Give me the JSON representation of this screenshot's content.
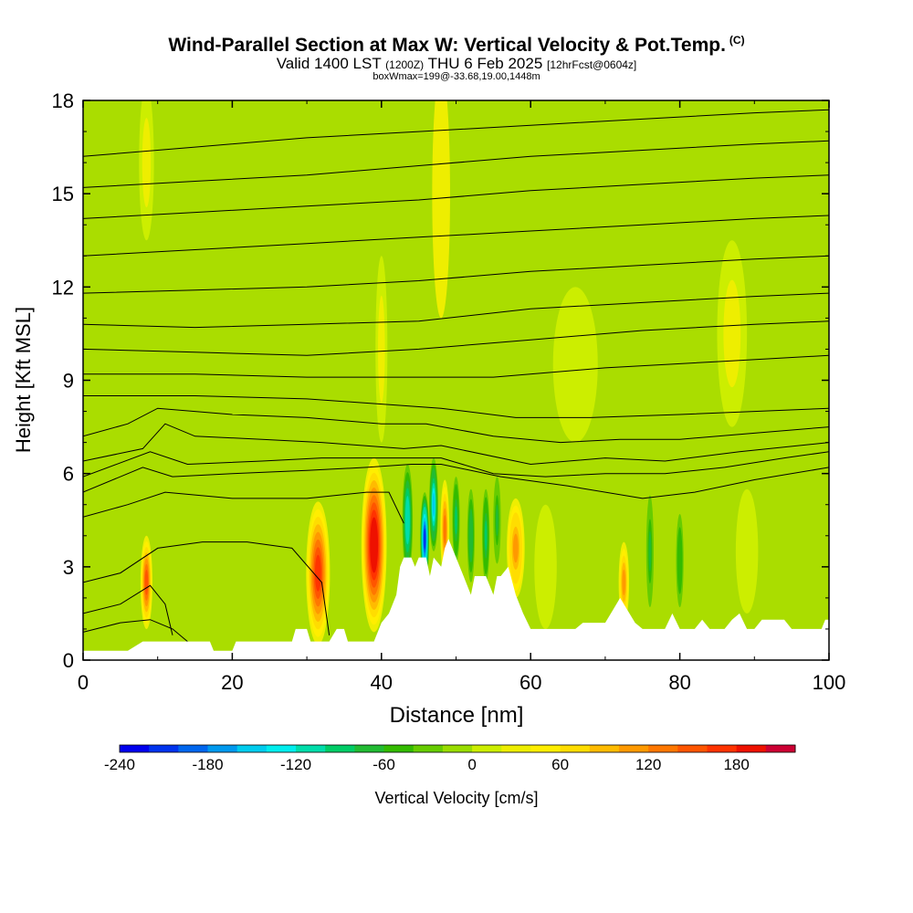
{
  "title": {
    "main": "Wind-Parallel Section at Max W: Vertical Velocity & Pot.Temp.",
    "copyright": "(C)",
    "valid_prefix": "Valid 1400 LST",
    "utc": "(1200Z)",
    "date": "THU 6 Feb 2025",
    "forecast": "[12hrFcst@0604z]",
    "box_info": "boxWmax=199@-33.68,19.00,1448m"
  },
  "colors": {
    "background_field": "#aadd00",
    "terrain": "#ffffff",
    "contour": "#000000"
  },
  "chart_data": {
    "type": "heatmap",
    "xlabel": "Distance [nm]",
    "ylabel": "Height [Kft MSL]",
    "xlim": [
      0,
      100
    ],
    "ylim": [
      0,
      18
    ],
    "xticks": [
      "0",
      "20",
      "40",
      "60",
      "80",
      "100"
    ],
    "yticks": [
      "0",
      "3",
      "6",
      "9",
      "12",
      "15",
      "18"
    ],
    "colorbar": {
      "label": "Vertical Velocity [cm/s]",
      "tick_labels": [
        "-240",
        "-180",
        "-120",
        "-60",
        "0",
        "60",
        "120",
        "180"
      ],
      "tick_values": [
        -240,
        -180,
        -120,
        -60,
        0,
        60,
        120,
        180
      ],
      "min": -240,
      "max": 220,
      "colors": [
        "#0000ee",
        "#0033ee",
        "#0066ee",
        "#0099ee",
        "#00ccee",
        "#00eeee",
        "#00ddaa",
        "#00cc66",
        "#22bb33",
        "#33bb00",
        "#66cc00",
        "#99dd00",
        "#ccee00",
        "#eeee00",
        "#ffee00",
        "#ffdd00",
        "#ffbb00",
        "#ff9900",
        "#ff7700",
        "#ff5500",
        "#ff3300",
        "#ee1100",
        "#cc0033"
      ]
    },
    "terrain_profile": [
      [
        0,
        0.3
      ],
      [
        2,
        0.3
      ],
      [
        4,
        0.3
      ],
      [
        6,
        0.3
      ],
      [
        8,
        0.6
      ],
      [
        10,
        0.6
      ],
      [
        12,
        0.6
      ],
      [
        14,
        0.6
      ],
      [
        17,
        0.6
      ],
      [
        17.5,
        0.3
      ],
      [
        20,
        0.3
      ],
      [
        20.5,
        0.6
      ],
      [
        22,
        0.6
      ],
      [
        24,
        0.6
      ],
      [
        26,
        0.6
      ],
      [
        28,
        0.6
      ],
      [
        28.5,
        1.0
      ],
      [
        30,
        1.0
      ],
      [
        30.5,
        0.6
      ],
      [
        33,
        0.6
      ],
      [
        34,
        1.0
      ],
      [
        35,
        1.0
      ],
      [
        35.5,
        0.6
      ],
      [
        39,
        0.6
      ],
      [
        40,
        1.2
      ],
      [
        41,
        1.5
      ],
      [
        42,
        2.1
      ],
      [
        42.5,
        3.0
      ],
      [
        43,
        3.3
      ],
      [
        44,
        3.3
      ],
      [
        44.5,
        3.0
      ],
      [
        45,
        3.3
      ],
      [
        46,
        3.3
      ],
      [
        46.5,
        2.7
      ],
      [
        47,
        3.3
      ],
      [
        48,
        3.0
      ],
      [
        48.5,
        3.6
      ],
      [
        49,
        3.9
      ],
      [
        50,
        3.3
      ],
      [
        51,
        2.7
      ],
      [
        52,
        2.1
      ],
      [
        52.5,
        2.7
      ],
      [
        54,
        2.7
      ],
      [
        55,
        2.1
      ],
      [
        55.5,
        2.7
      ],
      [
        56,
        2.7
      ],
      [
        57,
        3.0
      ],
      [
        58,
        2.1
      ],
      [
        59,
        1.5
      ],
      [
        60,
        1.0
      ],
      [
        62,
        1.0
      ],
      [
        64,
        1.0
      ],
      [
        66,
        1.0
      ],
      [
        67,
        1.2
      ],
      [
        70,
        1.2
      ],
      [
        71,
        1.6
      ],
      [
        72,
        2.0
      ],
      [
        73,
        1.6
      ],
      [
        74,
        1.2
      ],
      [
        75,
        1.0
      ],
      [
        78,
        1.0
      ],
      [
        79,
        1.5
      ],
      [
        80,
        1.0
      ],
      [
        82,
        1.0
      ],
      [
        83,
        1.3
      ],
      [
        84,
        1.0
      ],
      [
        86,
        1.0
      ],
      [
        87,
        1.3
      ],
      [
        88,
        1.5
      ],
      [
        89,
        1.0
      ],
      [
        90,
        1.0
      ],
      [
        91,
        1.3
      ],
      [
        94,
        1.3
      ],
      [
        95,
        1.0
      ],
      [
        99,
        1.0
      ],
      [
        99.5,
        1.3
      ],
      [
        100,
        1.3
      ]
    ],
    "velocity_features": [
      {
        "x": 8.5,
        "y": 2.5,
        "dx": 0.8,
        "dy": 1.5,
        "w": 140
      },
      {
        "x": 31.5,
        "y": 2.8,
        "dx": 1.6,
        "dy": 2.3,
        "w": 160
      },
      {
        "x": 39.0,
        "y": 3.7,
        "dx": 1.7,
        "dy": 2.8,
        "w": 199
      },
      {
        "x": 43.5,
        "y": 4.5,
        "dx": 0.7,
        "dy": 1.8,
        "w": -120
      },
      {
        "x": 45.8,
        "y": 3.9,
        "dx": 0.6,
        "dy": 1.5,
        "w": -210
      },
      {
        "x": 47.0,
        "y": 5.0,
        "dx": 0.6,
        "dy": 1.5,
        "w": -150
      },
      {
        "x": 48.5,
        "y": 4.2,
        "dx": 0.6,
        "dy": 1.6,
        "w": 120
      },
      {
        "x": 50.0,
        "y": 4.5,
        "dx": 0.5,
        "dy": 1.4,
        "w": -90
      },
      {
        "x": 52.0,
        "y": 4.0,
        "dx": 0.5,
        "dy": 1.5,
        "w": -80
      },
      {
        "x": 54.0,
        "y": 4.0,
        "dx": 0.5,
        "dy": 1.5,
        "w": -90
      },
      {
        "x": 55.5,
        "y": 4.5,
        "dx": 0.5,
        "dy": 1.4,
        "w": -70
      },
      {
        "x": 58.0,
        "y": 3.6,
        "dx": 1.2,
        "dy": 1.6,
        "w": 110
      },
      {
        "x": 72.5,
        "y": 2.5,
        "dx": 0.7,
        "dy": 1.3,
        "w": 100
      },
      {
        "x": 76.0,
        "y": 3.5,
        "dx": 0.5,
        "dy": 1.8,
        "w": -70
      },
      {
        "x": 80.0,
        "y": 3.2,
        "dx": 0.5,
        "dy": 1.5,
        "w": -60
      },
      {
        "x": 48.0,
        "y": 15.0,
        "dx": 1.2,
        "dy": 4.0,
        "w": 35
      },
      {
        "x": 8.5,
        "y": 16.0,
        "dx": 1.0,
        "dy": 2.5,
        "w": 25
      },
      {
        "x": 66.0,
        "y": 9.5,
        "dx": 3.0,
        "dy": 2.5,
        "w": 20
      },
      {
        "x": 87.0,
        "y": 10.5,
        "dx": 2.0,
        "dy": 3.0,
        "w": 22
      },
      {
        "x": 40.0,
        "y": 10.0,
        "dx": 0.8,
        "dy": 3.0,
        "w": 25
      },
      {
        "x": 62.0,
        "y": 3.0,
        "dx": 1.5,
        "dy": 2.0,
        "w": 20
      },
      {
        "x": 89.0,
        "y": 3.5,
        "dx": 1.5,
        "dy": 2.0,
        "w": 18
      }
    ],
    "theta_contours": [
      {
        "pts": [
          [
            0,
            0.9
          ],
          [
            5,
            1.2
          ],
          [
            9,
            1.3
          ],
          [
            12,
            1.0
          ],
          [
            14,
            0.6
          ]
        ]
      },
      {
        "pts": [
          [
            0,
            1.5
          ],
          [
            5,
            1.8
          ],
          [
            9,
            2.4
          ],
          [
            11,
            1.8
          ],
          [
            12,
            0.8
          ]
        ]
      },
      {
        "pts": [
          [
            0,
            2.5
          ],
          [
            5,
            2.8
          ],
          [
            10,
            3.6
          ],
          [
            16,
            3.8
          ],
          [
            22,
            3.8
          ],
          [
            28,
            3.6
          ],
          [
            32,
            2.5
          ],
          [
            33,
            0.8
          ]
        ]
      },
      {
        "pts": [
          [
            0,
            4.6
          ],
          [
            6,
            5.0
          ],
          [
            11,
            5.4
          ],
          [
            20,
            5.2
          ],
          [
            30,
            5.2
          ],
          [
            38,
            5.4
          ],
          [
            41,
            5.4
          ],
          [
            43,
            4.4
          ]
        ]
      },
      {
        "pts": [
          [
            0,
            5.4
          ],
          [
            8,
            6.2
          ],
          [
            12,
            5.9
          ],
          [
            20,
            6.0
          ],
          [
            30,
            6.1
          ],
          [
            38,
            6.2
          ],
          [
            44,
            6.3
          ],
          [
            48,
            6.3
          ],
          [
            56,
            5.9
          ],
          [
            65,
            5.6
          ],
          [
            75,
            5.2
          ],
          [
            82,
            5.4
          ],
          [
            90,
            5.8
          ],
          [
            100,
            6.2
          ]
        ]
      },
      {
        "pts": [
          [
            0,
            5.9
          ],
          [
            9,
            6.7
          ],
          [
            14,
            6.3
          ],
          [
            24,
            6.4
          ],
          [
            32,
            6.5
          ],
          [
            41,
            6.5
          ],
          [
            48,
            6.5
          ],
          [
            55,
            6.0
          ],
          [
            62,
            5.9
          ],
          [
            70,
            6.0
          ],
          [
            78,
            6.0
          ],
          [
            86,
            6.2
          ],
          [
            94,
            6.5
          ],
          [
            100,
            6.7
          ]
        ]
      },
      {
        "pts": [
          [
            0,
            6.4
          ],
          [
            8,
            6.8
          ],
          [
            11,
            7.6
          ],
          [
            15,
            7.2
          ],
          [
            24,
            7.1
          ],
          [
            32,
            7.0
          ],
          [
            43,
            6.8
          ],
          [
            48,
            6.9
          ],
          [
            60,
            6.3
          ],
          [
            70,
            6.5
          ],
          [
            78,
            6.4
          ],
          [
            88,
            6.7
          ],
          [
            100,
            7.0
          ]
        ]
      },
      {
        "pts": [
          [
            0,
            7.2
          ],
          [
            6,
            7.6
          ],
          [
            10,
            8.1
          ],
          [
            20,
            7.9
          ],
          [
            30,
            7.8
          ],
          [
            40,
            7.6
          ],
          [
            46,
            7.6
          ],
          [
            55,
            7.2
          ],
          [
            64,
            7.0
          ],
          [
            72,
            7.1
          ],
          [
            80,
            7.1
          ],
          [
            90,
            7.3
          ],
          [
            100,
            7.5
          ]
        ]
      },
      {
        "pts": [
          [
            0,
            8.5
          ],
          [
            15,
            8.5
          ],
          [
            30,
            8.4
          ],
          [
            42,
            8.2
          ],
          [
            48,
            8.1
          ],
          [
            58,
            7.8
          ],
          [
            68,
            7.8
          ],
          [
            80,
            7.9
          ],
          [
            100,
            8.1
          ]
        ]
      },
      {
        "pts": [
          [
            0,
            9.2
          ],
          [
            15,
            9.2
          ],
          [
            30,
            9.1
          ],
          [
            45,
            9.1
          ],
          [
            55,
            9.1
          ],
          [
            70,
            9.4
          ],
          [
            85,
            9.6
          ],
          [
            100,
            9.8
          ]
        ]
      },
      {
        "pts": [
          [
            0,
            10.0
          ],
          [
            15,
            9.9
          ],
          [
            30,
            9.8
          ],
          [
            45,
            10.0
          ],
          [
            60,
            10.3
          ],
          [
            75,
            10.6
          ],
          [
            90,
            10.8
          ],
          [
            100,
            10.9
          ]
        ]
      },
      {
        "pts": [
          [
            0,
            10.8
          ],
          [
            15,
            10.7
          ],
          [
            30,
            10.8
          ],
          [
            45,
            10.9
          ],
          [
            60,
            11.3
          ],
          [
            75,
            11.5
          ],
          [
            90,
            11.7
          ],
          [
            100,
            11.8
          ]
        ]
      },
      {
        "pts": [
          [
            0,
            11.8
          ],
          [
            15,
            11.9
          ],
          [
            30,
            12.0
          ],
          [
            45,
            12.2
          ],
          [
            60,
            12.5
          ],
          [
            75,
            12.7
          ],
          [
            90,
            12.9
          ],
          [
            100,
            13.0
          ]
        ]
      },
      {
        "pts": [
          [
            0,
            13.0
          ],
          [
            15,
            13.2
          ],
          [
            30,
            13.4
          ],
          [
            45,
            13.6
          ],
          [
            60,
            13.8
          ],
          [
            75,
            14.0
          ],
          [
            90,
            14.2
          ],
          [
            100,
            14.3
          ]
        ]
      },
      {
        "pts": [
          [
            0,
            14.2
          ],
          [
            15,
            14.4
          ],
          [
            30,
            14.6
          ],
          [
            45,
            14.8
          ],
          [
            60,
            15.1
          ],
          [
            75,
            15.3
          ],
          [
            90,
            15.5
          ],
          [
            100,
            15.6
          ]
        ]
      },
      {
        "pts": [
          [
            0,
            15.2
          ],
          [
            15,
            15.4
          ],
          [
            30,
            15.6
          ],
          [
            45,
            15.9
          ],
          [
            60,
            16.2
          ],
          [
            75,
            16.4
          ],
          [
            90,
            16.6
          ],
          [
            100,
            16.7
          ]
        ]
      },
      {
        "pts": [
          [
            0,
            16.2
          ],
          [
            15,
            16.5
          ],
          [
            30,
            16.8
          ],
          [
            45,
            17.0
          ],
          [
            60,
            17.2
          ],
          [
            75,
            17.4
          ],
          [
            90,
            17.6
          ],
          [
            100,
            17.7
          ]
        ]
      }
    ]
  }
}
